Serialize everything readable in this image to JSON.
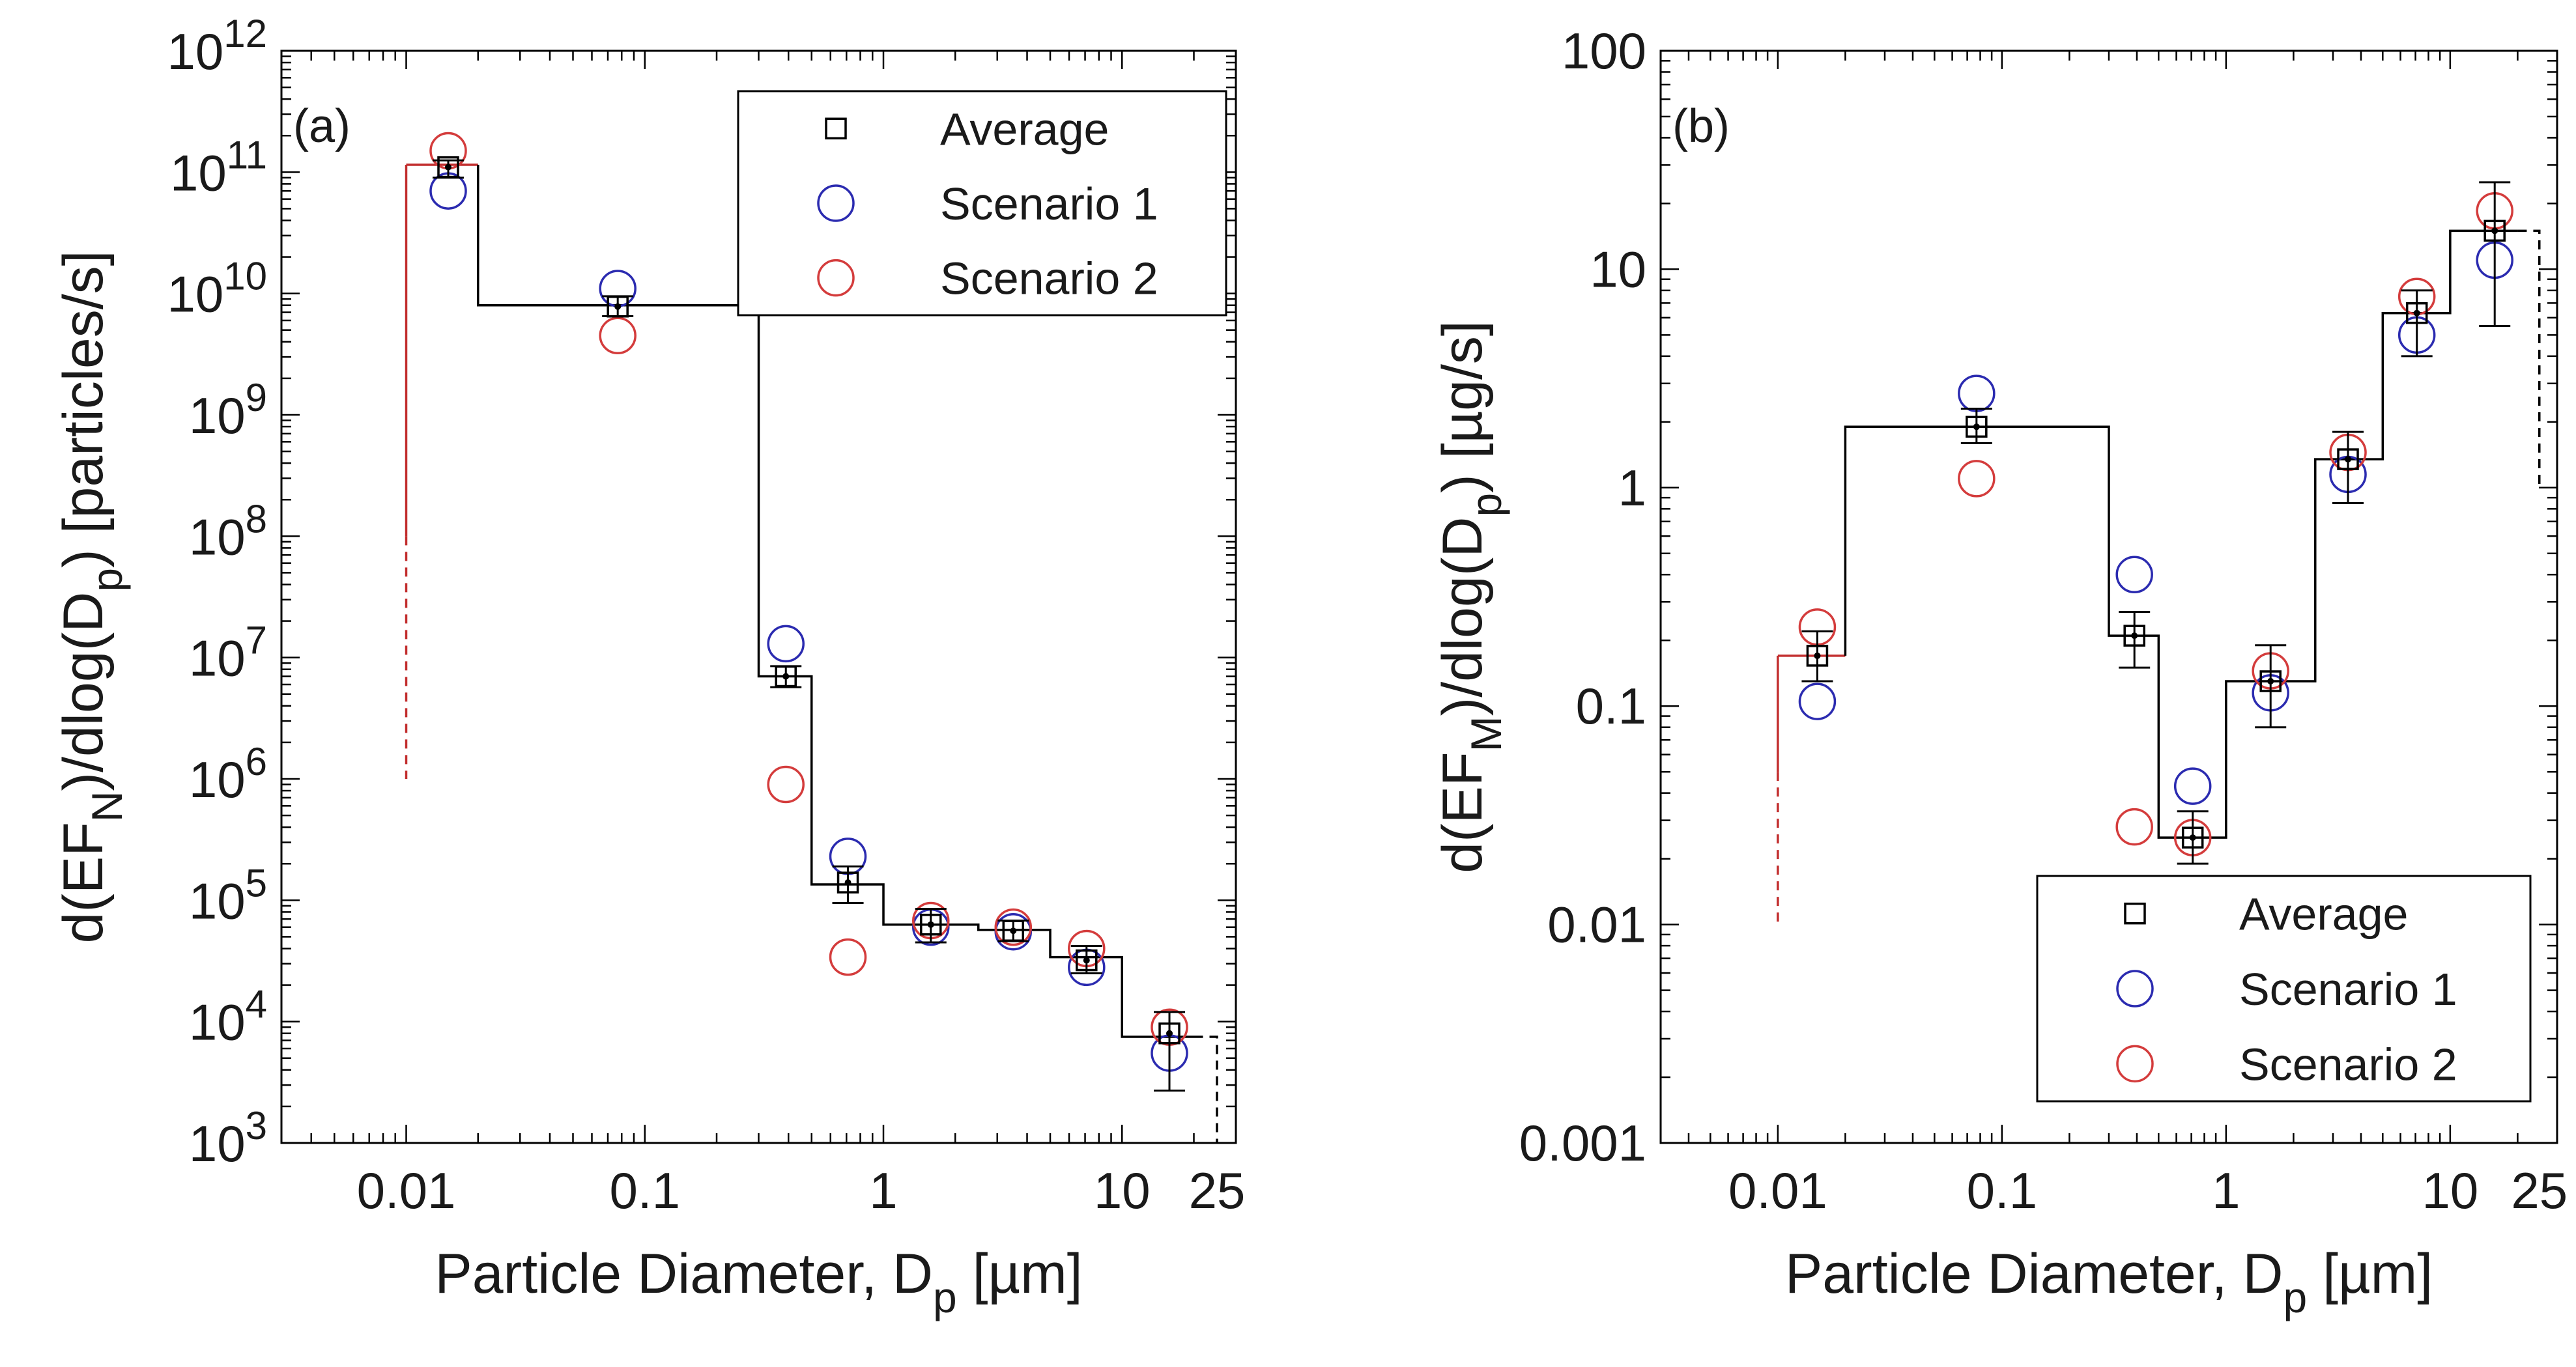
{
  "chart_data": [
    {
      "panel_label": "(a)",
      "type": "scatter",
      "x_scale": "log",
      "y_scale": "log",
      "xlim": [
        0.003,
        30
      ],
      "ylim": [
        1000,
        1000000000000
      ],
      "xlabel": "Particle Diameter, D",
      "xlabel_sub": "p",
      "xlabel_tail": " [µm]",
      "ylabel_parts": [
        {
          "t": "d(EF",
          "sub": false
        },
        {
          "t": "N",
          "sub": true
        },
        {
          "t": ")/dlog(D",
          "sub": false
        },
        {
          "t": "p",
          "sub": true
        },
        {
          "t": ") [particles/s]",
          "sub": false
        }
      ],
      "x_ticks": [
        {
          "v": 0.01,
          "label": "0.01"
        },
        {
          "v": 0.1,
          "label": "0.1"
        },
        {
          "v": 1,
          "label": "1"
        },
        {
          "v": 10,
          "label": "10"
        },
        {
          "v": 25,
          "label": "25"
        }
      ],
      "y_ticks": [
        {
          "v": 1000,
          "base": "10",
          "exp": "3"
        },
        {
          "v": 10000,
          "base": "10",
          "exp": "4"
        },
        {
          "v": 100000,
          "base": "10",
          "exp": "5"
        },
        {
          "v": 1000000,
          "base": "10",
          "exp": "6"
        },
        {
          "v": 10000000,
          "base": "10",
          "exp": "7"
        },
        {
          "v": 100000000,
          "base": "10",
          "exp": "8"
        },
        {
          "v": 1000000000,
          "base": "10",
          "exp": "9"
        },
        {
          "v": 10000000000,
          "base": "10",
          "exp": "10"
        },
        {
          "v": 100000000000,
          "base": "10",
          "exp": "11"
        },
        {
          "v": 1000000000000,
          "base": "10",
          "exp": "12"
        }
      ],
      "step_bins": [
        {
          "x0": 0.01,
          "x1": 0.02,
          "y": 115000000000
        },
        {
          "x0": 0.02,
          "x1": 0.3,
          "y": 8000000000
        },
        {
          "x0": 0.3,
          "x1": 0.5,
          "y": 7000000
        },
        {
          "x0": 0.5,
          "x1": 1.0,
          "y": 135000
        },
        {
          "x0": 1.0,
          "x1": 2.5,
          "y": 63000
        },
        {
          "x0": 2.5,
          "x1": 5.0,
          "y": 57000
        },
        {
          "x0": 5.0,
          "x1": 10,
          "y": 34000
        },
        {
          "x0": 10,
          "x1": 20,
          "y": 7500
        }
      ],
      "lower_extension": {
        "x": 0.01,
        "y_solid_to": 100000000,
        "y_dashed_to": 1000000
      },
      "upper_extension": {
        "x0": 20,
        "x1": 25,
        "y": 7500,
        "y_bottom": 1000
      },
      "series": [
        {
          "name": "Average",
          "marker": "square",
          "color": "#000000",
          "points": [
            {
              "x": 0.015,
              "y": 110000000000,
              "lo": 90000000000,
              "hi": 125000000000
            },
            {
              "x": 0.077,
              "y": 7800000000,
              "lo": 6500000000,
              "hi": 9500000000
            },
            {
              "x": 0.39,
              "y": 7000000,
              "lo": 5700000,
              "hi": 8500000
            },
            {
              "x": 0.71,
              "y": 140000,
              "lo": 95000,
              "hi": 190000
            },
            {
              "x": 1.58,
              "y": 63000,
              "lo": 45000,
              "hi": 85000
            },
            {
              "x": 3.5,
              "y": 56000,
              "lo": 46000,
              "hi": 68000
            },
            {
              "x": 7.1,
              "y": 32000,
              "lo": 25000,
              "hi": 42000
            },
            {
              "x": 15.8,
              "y": 8000,
              "lo": 2700,
              "hi": 12000
            }
          ]
        },
        {
          "name": "Scenario 1",
          "marker": "circle",
          "color": "#2b2bb0",
          "points": [
            {
              "x": 0.015,
              "y": 70000000000
            },
            {
              "x": 0.077,
              "y": 11000000000
            },
            {
              "x": 0.39,
              "y": 13000000
            },
            {
              "x": 0.71,
              "y": 230000
            },
            {
              "x": 1.58,
              "y": 60000
            },
            {
              "x": 3.5,
              "y": 55000
            },
            {
              "x": 7.1,
              "y": 28000
            },
            {
              "x": 15.8,
              "y": 5500
            }
          ]
        },
        {
          "name": "Scenario 2",
          "marker": "circle",
          "color": "#d43c3c",
          "points": [
            {
              "x": 0.015,
              "y": 150000000000
            },
            {
              "x": 0.077,
              "y": 4500000000
            },
            {
              "x": 0.39,
              "y": 900000
            },
            {
              "x": 0.71,
              "y": 34000
            },
            {
              "x": 1.58,
              "y": 68000
            },
            {
              "x": 3.5,
              "y": 60000
            },
            {
              "x": 7.1,
              "y": 40000
            },
            {
              "x": 15.8,
              "y": 9000
            }
          ]
        }
      ],
      "legend": {
        "position": "top-right",
        "entries": [
          "Average",
          "Scenario 1",
          "Scenario 2"
        ]
      }
    },
    {
      "panel_label": "(b)",
      "type": "scatter",
      "x_scale": "log",
      "y_scale": "log",
      "xlim": [
        0.003,
        30
      ],
      "ylim": [
        0.001,
        100
      ],
      "xlabel": "Particle Diameter, D",
      "xlabel_sub": "p",
      "xlabel_tail": " [µm]",
      "ylabel_parts": [
        {
          "t": "d(EF",
          "sub": false
        },
        {
          "t": "M",
          "sub": true
        },
        {
          "t": ")/dlog(D",
          "sub": false
        },
        {
          "t": "p",
          "sub": true
        },
        {
          "t": ") [µg/s]",
          "sub": false
        }
      ],
      "x_ticks": [
        {
          "v": 0.01,
          "label": "0.01"
        },
        {
          "v": 0.1,
          "label": "0.1"
        },
        {
          "v": 1,
          "label": "1"
        },
        {
          "v": 10,
          "label": "10"
        },
        {
          "v": 25,
          "label": "25"
        }
      ],
      "y_ticks": [
        {
          "v": 0.001,
          "label": "0.001"
        },
        {
          "v": 0.01,
          "label": "0.01"
        },
        {
          "v": 0.1,
          "label": "0.1"
        },
        {
          "v": 1,
          "label": "1"
        },
        {
          "v": 10,
          "label": "10"
        },
        {
          "v": 100,
          "label": "100"
        }
      ],
      "step_bins": [
        {
          "x0": 0.01,
          "x1": 0.02,
          "y": 0.17
        },
        {
          "x0": 0.02,
          "x1": 0.3,
          "y": 1.9
        },
        {
          "x0": 0.3,
          "x1": 0.5,
          "y": 0.21
        },
        {
          "x0": 0.5,
          "x1": 1.0,
          "y": 0.025
        },
        {
          "x0": 1.0,
          "x1": 2.5,
          "y": 0.13
        },
        {
          "x0": 2.5,
          "x1": 5.0,
          "y": 1.35
        },
        {
          "x0": 5.0,
          "x1": 10,
          "y": 6.3
        },
        {
          "x0": 10,
          "x1": 20,
          "y": 15
        }
      ],
      "lower_extension": {
        "x": 0.01,
        "y_solid_to": 0.05,
        "y_dashed_to": 0.01
      },
      "upper_extension": {
        "x0": 20,
        "x1": 25,
        "y": 15,
        "y_bottom": 1
      },
      "series": [
        {
          "name": "Average",
          "marker": "square",
          "color": "#000000",
          "points": [
            {
              "x": 0.015,
              "y": 0.17,
              "lo": 0.13,
              "hi": 0.22
            },
            {
              "x": 0.077,
              "y": 1.9,
              "lo": 1.6,
              "hi": 2.3
            },
            {
              "x": 0.39,
              "y": 0.21,
              "lo": 0.15,
              "hi": 0.27
            },
            {
              "x": 0.71,
              "y": 0.025,
              "lo": 0.019,
              "hi": 0.033
            },
            {
              "x": 1.58,
              "y": 0.13,
              "lo": 0.08,
              "hi": 0.19
            },
            {
              "x": 3.5,
              "y": 1.35,
              "lo": 0.85,
              "hi": 1.8
            },
            {
              "x": 7.1,
              "y": 6.3,
              "lo": 4.0,
              "hi": 8.0
            },
            {
              "x": 15.8,
              "y": 15,
              "lo": 5.5,
              "hi": 25
            }
          ]
        },
        {
          "name": "Scenario 1",
          "marker": "circle",
          "color": "#2b2bb0",
          "points": [
            {
              "x": 0.015,
              "y": 0.105
            },
            {
              "x": 0.077,
              "y": 2.7
            },
            {
              "x": 0.39,
              "y": 0.4
            },
            {
              "x": 0.71,
              "y": 0.043
            },
            {
              "x": 1.58,
              "y": 0.115
            },
            {
              "x": 3.5,
              "y": 1.15
            },
            {
              "x": 7.1,
              "y": 5.0
            },
            {
              "x": 15.8,
              "y": 11
            }
          ]
        },
        {
          "name": "Scenario 2",
          "marker": "circle",
          "color": "#d43c3c",
          "points": [
            {
              "x": 0.015,
              "y": 0.23
            },
            {
              "x": 0.077,
              "y": 1.1
            },
            {
              "x": 0.39,
              "y": 0.028
            },
            {
              "x": 0.71,
              "y": 0.025
            },
            {
              "x": 1.58,
              "y": 0.145
            },
            {
              "x": 3.5,
              "y": 1.45
            },
            {
              "x": 7.1,
              "y": 7.5
            },
            {
              "x": 15.8,
              "y": 18.5
            }
          ]
        }
      ],
      "legend": {
        "position": "bottom-right",
        "entries": [
          "Average",
          "Scenario 1",
          "Scenario 2"
        ]
      }
    }
  ],
  "colors": {
    "axis": "#000000",
    "step_black": "#000000",
    "step_red": "#c22d2d",
    "blue": "#2b2bb0",
    "red": "#d43c3c"
  }
}
